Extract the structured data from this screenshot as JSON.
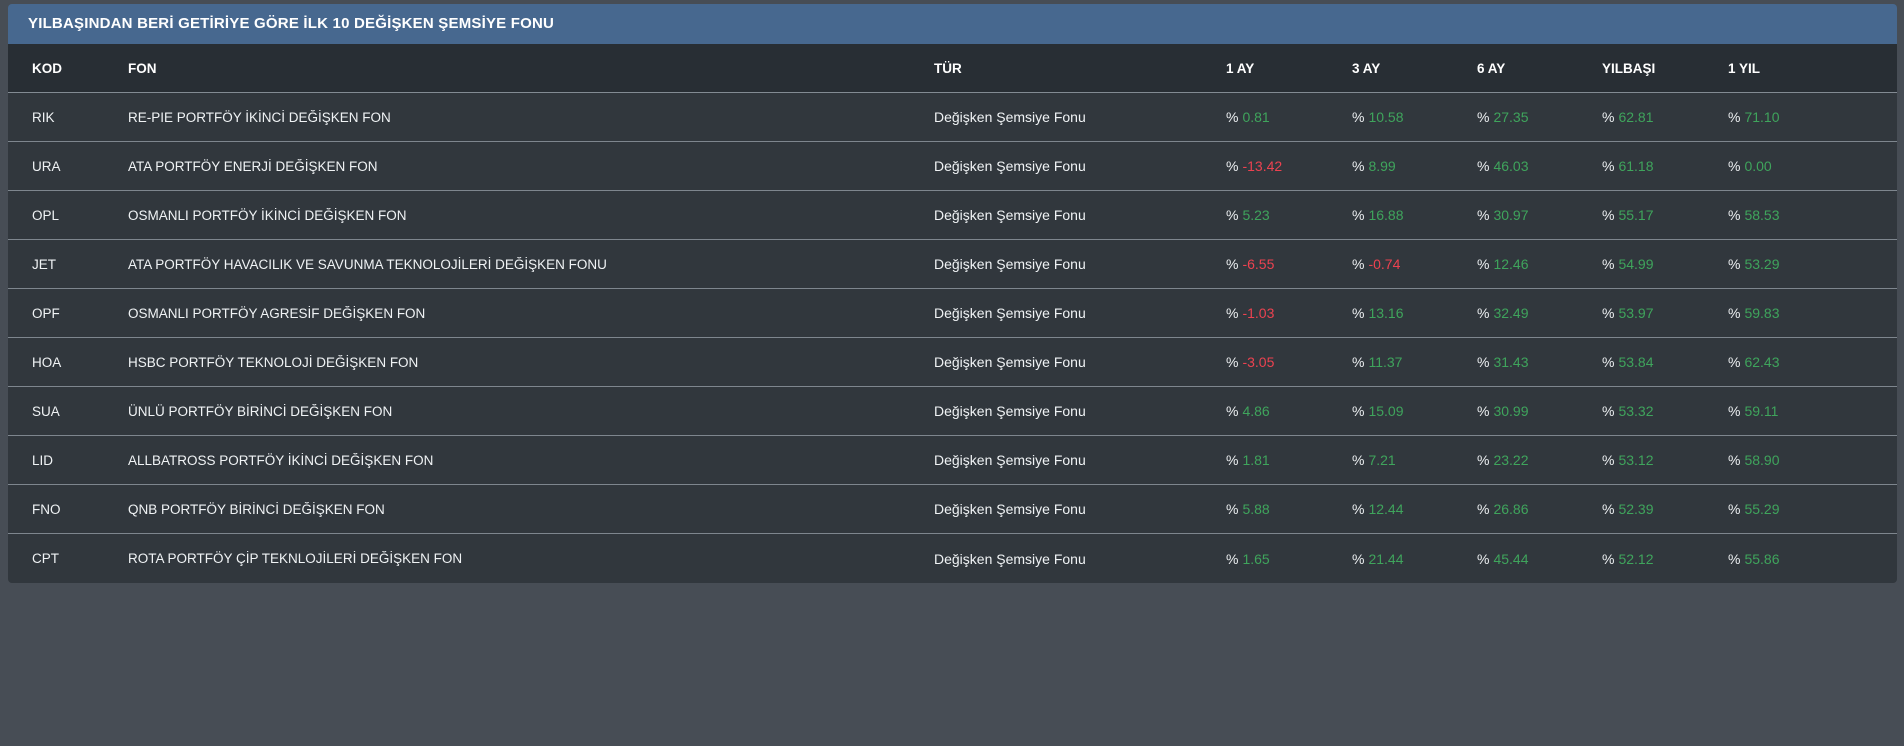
{
  "title": "YILBAŞINDAN BERİ GETİRİYE GÖRE İLK 10 DEĞİŞKEN ŞEMSİYE FONU",
  "colors": {
    "page_bg": "#474D55",
    "title_bar_bg": "#47688F",
    "header_bg": "#282E34",
    "row_bg": "#31373D",
    "divider": "#7E868E",
    "text": "#F0F3F5",
    "positive": "#3FA45C",
    "negative": "#EC4250"
  },
  "table": {
    "percent_prefix": "%",
    "columns": [
      "KOD",
      "FON",
      "TÜR",
      "1 AY",
      "3 AY",
      "6 AY",
      "YILBAŞI",
      "1 YIL"
    ],
    "rows": [
      {
        "kod": "RIK",
        "fon": "RE-PIE PORTFÖY İKİNCİ DEĞİŞKEN FON",
        "tur": "Değişken Şemsiye Fonu",
        "ay1": "0.81",
        "ay3": "10.58",
        "ay6": "27.35",
        "yilbasi": "62.81",
        "yil1": "71.10"
      },
      {
        "kod": "URA",
        "fon": "ATA PORTFÖY ENERJİ DEĞİŞKEN FON",
        "tur": "Değişken Şemsiye Fonu",
        "ay1": "-13.42",
        "ay3": "8.99",
        "ay6": "46.03",
        "yilbasi": "61.18",
        "yil1": "0.00"
      },
      {
        "kod": "OPL",
        "fon": "OSMANLI PORTFÖY İKİNCİ DEĞİŞKEN FON",
        "tur": "Değişken Şemsiye Fonu",
        "ay1": "5.23",
        "ay3": "16.88",
        "ay6": "30.97",
        "yilbasi": "55.17",
        "yil1": "58.53"
      },
      {
        "kod": "JET",
        "fon": "ATA PORTFÖY HAVACILIK VE SAVUNMA TEKNOLOJİLERİ DEĞİŞKEN FONU",
        "tur": "Değişken Şemsiye Fonu",
        "ay1": "-6.55",
        "ay3": "-0.74",
        "ay6": "12.46",
        "yilbasi": "54.99",
        "yil1": "53.29"
      },
      {
        "kod": "OPF",
        "fon": "OSMANLI PORTFÖY AGRESİF DEĞİŞKEN FON",
        "tur": "Değişken Şemsiye Fonu",
        "ay1": "-1.03",
        "ay3": "13.16",
        "ay6": "32.49",
        "yilbasi": "53.97",
        "yil1": "59.83"
      },
      {
        "kod": "HOA",
        "fon": "HSBC PORTFÖY TEKNOLOJİ DEĞİŞKEN FON",
        "tur": "Değişken Şemsiye Fonu",
        "ay1": "-3.05",
        "ay3": "11.37",
        "ay6": "31.43",
        "yilbasi": "53.84",
        "yil1": "62.43"
      },
      {
        "kod": "SUA",
        "fon": "ÜNLÜ PORTFÖY BİRİNCİ DEĞİŞKEN FON",
        "tur": "Değişken Şemsiye Fonu",
        "ay1": "4.86",
        "ay3": "15.09",
        "ay6": "30.99",
        "yilbasi": "53.32",
        "yil1": "59.11"
      },
      {
        "kod": "LID",
        "fon": "ALLBATROSS PORTFÖY İKİNCİ DEĞİŞKEN FON",
        "tur": "Değişken Şemsiye Fonu",
        "ay1": "1.81",
        "ay3": "7.21",
        "ay6": "23.22",
        "yilbasi": "53.12",
        "yil1": "58.90"
      },
      {
        "kod": "FNO",
        "fon": "QNB PORTFÖY BİRİNCİ DEĞİŞKEN FON",
        "tur": "Değişken Şemsiye Fonu",
        "ay1": "5.88",
        "ay3": "12.44",
        "ay6": "26.86",
        "yilbasi": "52.39",
        "yil1": "55.29"
      },
      {
        "kod": "CPT",
        "fon": "ROTA PORTFÖY ÇİP TEKNLOJİLERİ DEĞİŞKEN FON",
        "tur": "Değişken Şemsiye Fonu",
        "ay1": "1.65",
        "ay3": "21.44",
        "ay6": "45.44",
        "yilbasi": "52.12",
        "yil1": "55.86"
      }
    ]
  }
}
